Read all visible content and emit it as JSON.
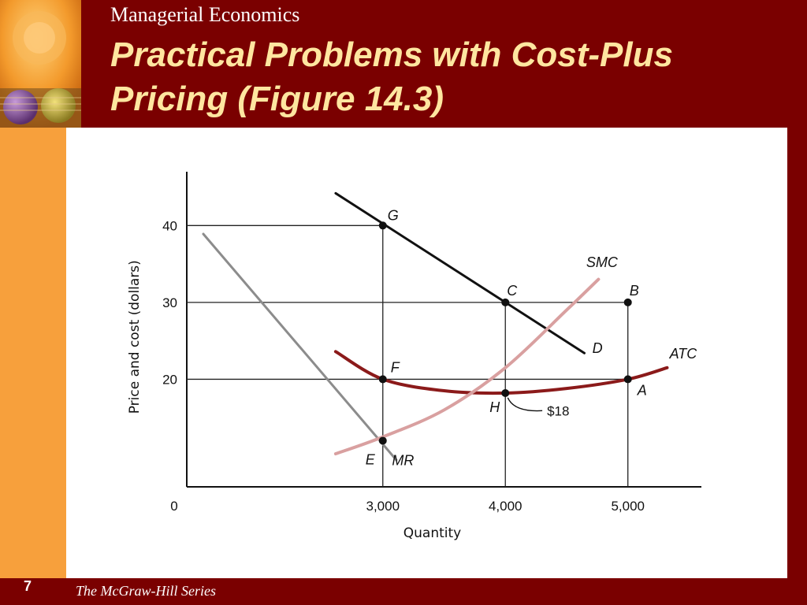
{
  "header": {
    "course": "Managerial Economics",
    "title": "Practical Problems with Cost-Plus Pricing  (Figure 14.3)"
  },
  "footer": {
    "page_number": "7",
    "series": "The McGraw-Hill Series"
  },
  "colors": {
    "background": "#7a0000",
    "side_strip": "#f7a03c",
    "title": "#ffe6a0",
    "demand": "#111111",
    "mr": "#8c8c8c",
    "atc": "#8b1a1a",
    "smc": "#d9a0a0"
  },
  "chart_data": {
    "type": "line",
    "xlabel": "Quantity",
    "ylabel": "Price and cost (dollars)",
    "origin_label": "0",
    "x_ticks": [
      {
        "value": 3000,
        "label": "3,000"
      },
      {
        "value": 4000,
        "label": "4,000"
      },
      {
        "value": 5000,
        "label": "5,000"
      }
    ],
    "y_ticks": [
      {
        "value": 20,
        "label": "20"
      },
      {
        "value": 30,
        "label": "30"
      },
      {
        "value": 40,
        "label": "40"
      }
    ],
    "xlim": [
      1400,
      5600
    ],
    "ylim": [
      6,
      47
    ],
    "grid": false,
    "series": [
      {
        "name": "D",
        "color": "#111111",
        "width": 3,
        "points": [
          [
            2615,
            44.2
          ],
          [
            4645,
            23.4
          ]
        ]
      },
      {
        "name": "MR",
        "color": "#8c8c8c",
        "width": 3,
        "points": [
          [
            1535,
            38.9
          ],
          [
            3110,
            9.5
          ]
        ]
      },
      {
        "name": "ATC",
        "color": "#8b1a1a",
        "width": 4,
        "points": [
          [
            2615,
            23.6
          ],
          [
            3000,
            20
          ],
          [
            3500,
            18.5
          ],
          [
            4000,
            18.2
          ],
          [
            4500,
            18.8
          ],
          [
            5000,
            20
          ],
          [
            5320,
            21.5
          ]
        ]
      },
      {
        "name": "SMC",
        "color": "#d9a0a0",
        "width": 4,
        "points": [
          [
            2615,
            10.3
          ],
          [
            3000,
            12.5
          ],
          [
            3500,
            16
          ],
          [
            4000,
            21.5
          ],
          [
            4500,
            29
          ],
          [
            4760,
            33
          ]
        ]
      }
    ],
    "points": [
      {
        "label": "G",
        "x": 3000,
        "y": 40,
        "dx": 6,
        "dy": -7
      },
      {
        "label": "C",
        "x": 4000,
        "y": 30,
        "dx": 2,
        "dy": -9
      },
      {
        "label": "B",
        "x": 5000,
        "y": 30,
        "dx": 2,
        "dy": -9
      },
      {
        "label": "F",
        "x": 3000,
        "y": 20,
        "dx": 10,
        "dy": -9
      },
      {
        "label": "A",
        "x": 5000,
        "y": 20,
        "dx": 12,
        "dy": 20
      },
      {
        "label": "H",
        "x": 4000,
        "y": 18.2,
        "dx": -20,
        "dy": 24
      },
      {
        "label": "E",
        "x": 3000,
        "y": 12,
        "dx": -22,
        "dy": 30
      }
    ],
    "curve_labels": [
      {
        "text": "D",
        "x": 4710,
        "y": 23.4
      },
      {
        "text": "MR",
        "x": 3075,
        "y": 8.8
      },
      {
        "text": "ATC",
        "x": 5340,
        "y": 22.7
      },
      {
        "text": "SMC",
        "x": 4660,
        "y": 34.6
      }
    ],
    "annotations": [
      {
        "text": "$18",
        "x": 4340,
        "y": 15.5,
        "arrow_to": [
          4020,
          17.6
        ]
      }
    ]
  }
}
